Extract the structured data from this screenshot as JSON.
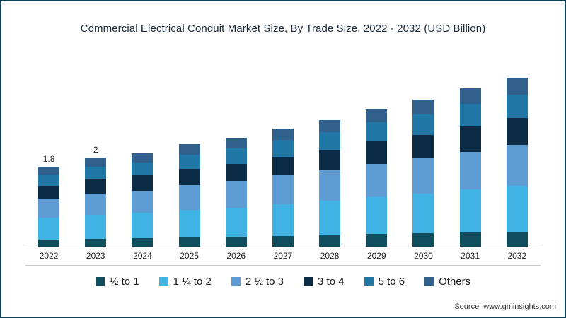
{
  "title": "Commercial Electrical Conduit Market Size, By Trade Size, 2022 - 2032 (USD Billion)",
  "source": "Source: www.gminsights.com",
  "chart_data": {
    "type": "bar",
    "stacked": true,
    "title": "Commercial Electrical Conduit Market Size, By Trade Size, 2022 - 2032 (USD Billion)",
    "xlabel": "",
    "ylabel": "",
    "ylim": [
      0,
      4.2
    ],
    "grid": false,
    "legend_position": "bottom",
    "categories": [
      "2022",
      "2023",
      "2024",
      "2025",
      "2026",
      "2027",
      "2028",
      "2029",
      "2030",
      "2031",
      "2032"
    ],
    "bar_labels": [
      "1.8",
      "2",
      "",
      "",
      "",
      "",
      "",
      "",
      "",
      "",
      ""
    ],
    "totals": [
      1.8,
      2.0,
      2.1,
      2.3,
      2.45,
      2.65,
      2.85,
      3.1,
      3.3,
      3.55,
      3.8
    ],
    "series": [
      {
        "name": "½ to 1",
        "color": "#0f4c5c",
        "values": [
          0.16,
          0.18,
          0.19,
          0.21,
          0.22,
          0.24,
          0.26,
          0.28,
          0.3,
          0.32,
          0.34
        ]
      },
      {
        "name": "1 ¼ to 2",
        "color": "#41b2e4",
        "values": [
          0.49,
          0.54,
          0.57,
          0.62,
          0.66,
          0.72,
          0.77,
          0.84,
          0.89,
          0.96,
          1.03
        ]
      },
      {
        "name": "2 ½ to 3",
        "color": "#5e9cd3",
        "values": [
          0.43,
          0.48,
          0.5,
          0.55,
          0.59,
          0.64,
          0.68,
          0.74,
          0.79,
          0.85,
          0.91
        ]
      },
      {
        "name": "3 to 4",
        "color": "#0c2b45",
        "values": [
          0.29,
          0.32,
          0.34,
          0.37,
          0.39,
          0.42,
          0.46,
          0.5,
          0.53,
          0.57,
          0.61
        ]
      },
      {
        "name": "5 to 6",
        "color": "#1f78a6",
        "values": [
          0.25,
          0.28,
          0.29,
          0.32,
          0.34,
          0.37,
          0.4,
          0.43,
          0.46,
          0.5,
          0.53
        ]
      },
      {
        "name": "Others",
        "color": "#30618c",
        "values": [
          0.18,
          0.2,
          0.21,
          0.23,
          0.25,
          0.26,
          0.28,
          0.31,
          0.33,
          0.35,
          0.38
        ]
      }
    ]
  }
}
